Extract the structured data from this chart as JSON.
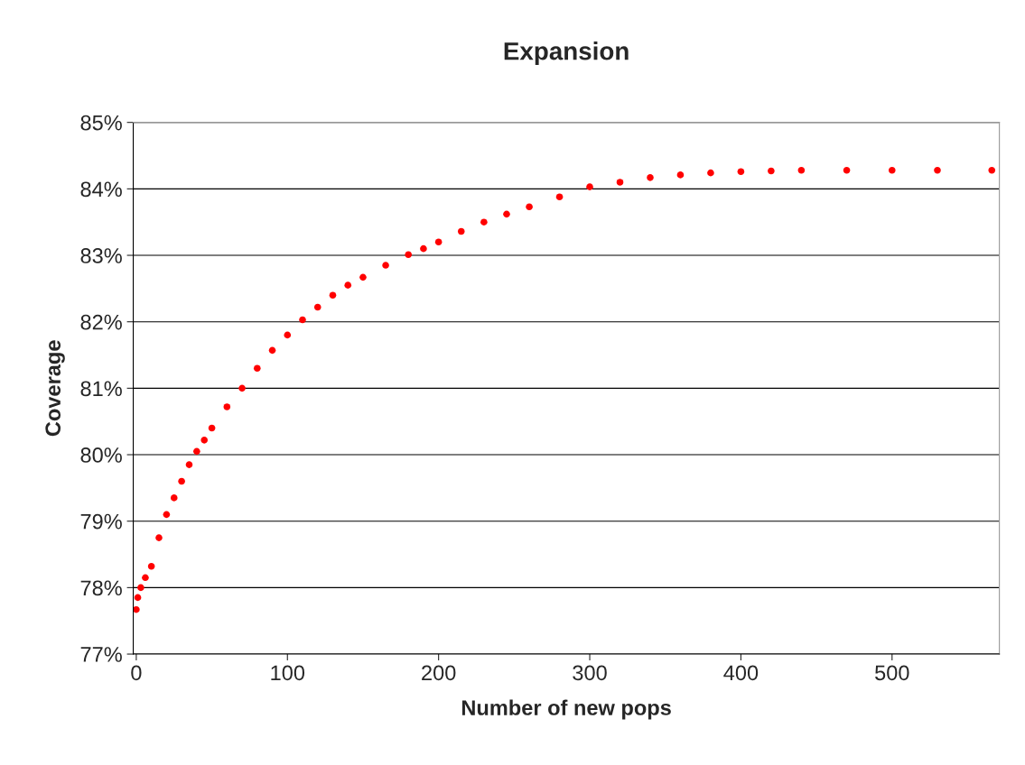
{
  "chart_data": {
    "type": "scatter",
    "title": "Expansion",
    "xlabel": "Number of new pops",
    "ylabel": "Coverage",
    "x": [
      0,
      1,
      3,
      6,
      10,
      15,
      20,
      25,
      30,
      35,
      40,
      45,
      50,
      60,
      70,
      80,
      90,
      100,
      110,
      120,
      130,
      140,
      150,
      165,
      180,
      190,
      200,
      215,
      230,
      245,
      260,
      280,
      300,
      320,
      340,
      360,
      380,
      400,
      420,
      440,
      470,
      500,
      530,
      566
    ],
    "series": [
      {
        "color": "#ff0000",
        "values": [
          77.67,
          77.85,
          78.0,
          78.15,
          78.32,
          78.75,
          79.1,
          79.35,
          79.6,
          79.85,
          80.05,
          80.22,
          80.4,
          80.72,
          81.0,
          81.3,
          81.57,
          81.8,
          82.03,
          82.22,
          82.4,
          82.55,
          82.67,
          82.85,
          83.01,
          83.1,
          83.2,
          83.36,
          83.5,
          83.62,
          83.73,
          83.88,
          84.03,
          84.1,
          84.17,
          84.21,
          84.24,
          84.26,
          84.27,
          84.28,
          84.28,
          84.28,
          84.28,
          84.28
        ]
      }
    ],
    "xlim": [
      -2,
      571
    ],
    "xticks": [
      0,
      100,
      200,
      300,
      400,
      500
    ],
    "ylim": [
      77,
      85
    ],
    "yticks": [
      {
        "value": 77,
        "label": "77%"
      },
      {
        "value": 78,
        "label": "78%"
      },
      {
        "value": 79,
        "label": "79%"
      },
      {
        "value": 80,
        "label": "80%"
      },
      {
        "value": 81,
        "label": "81%"
      },
      {
        "value": 82,
        "label": "82%"
      },
      {
        "value": 83,
        "label": "83%"
      },
      {
        "value": 84,
        "label": "84%"
      },
      {
        "value": 85,
        "label": "85%"
      }
    ],
    "grid": "y",
    "marker": "circle"
  }
}
